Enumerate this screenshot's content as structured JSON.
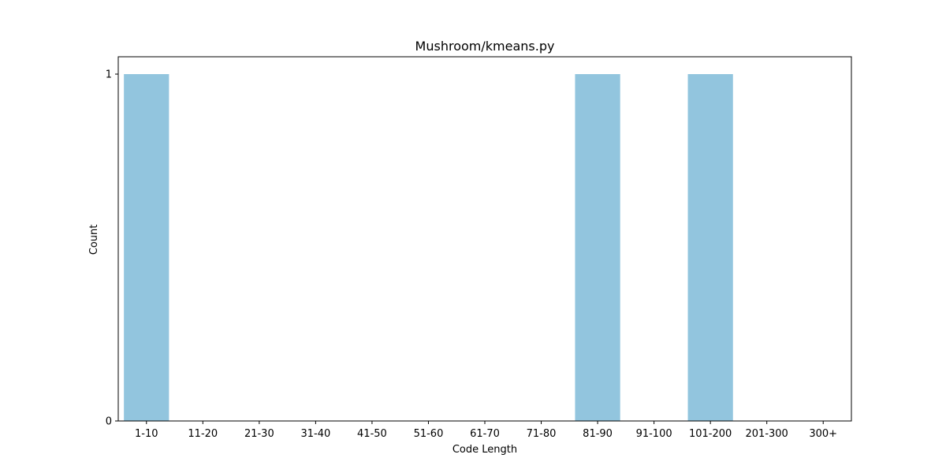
{
  "chart_data": {
    "type": "bar",
    "title": "Mushroom/kmeans.py",
    "xlabel": "Code Length",
    "ylabel": "Count",
    "categories": [
      "1-10",
      "11-20",
      "21-30",
      "31-40",
      "41-50",
      "51-60",
      "61-70",
      "71-80",
      "81-90",
      "91-100",
      "101-200",
      "201-300",
      "300+"
    ],
    "values": [
      1,
      0,
      0,
      0,
      0,
      0,
      0,
      0,
      1,
      0,
      1,
      0,
      0
    ],
    "ylim": [
      0,
      1.05
    ],
    "yticks": [
      0,
      1
    ],
    "grid": false,
    "bar_color": "#92c5de"
  }
}
